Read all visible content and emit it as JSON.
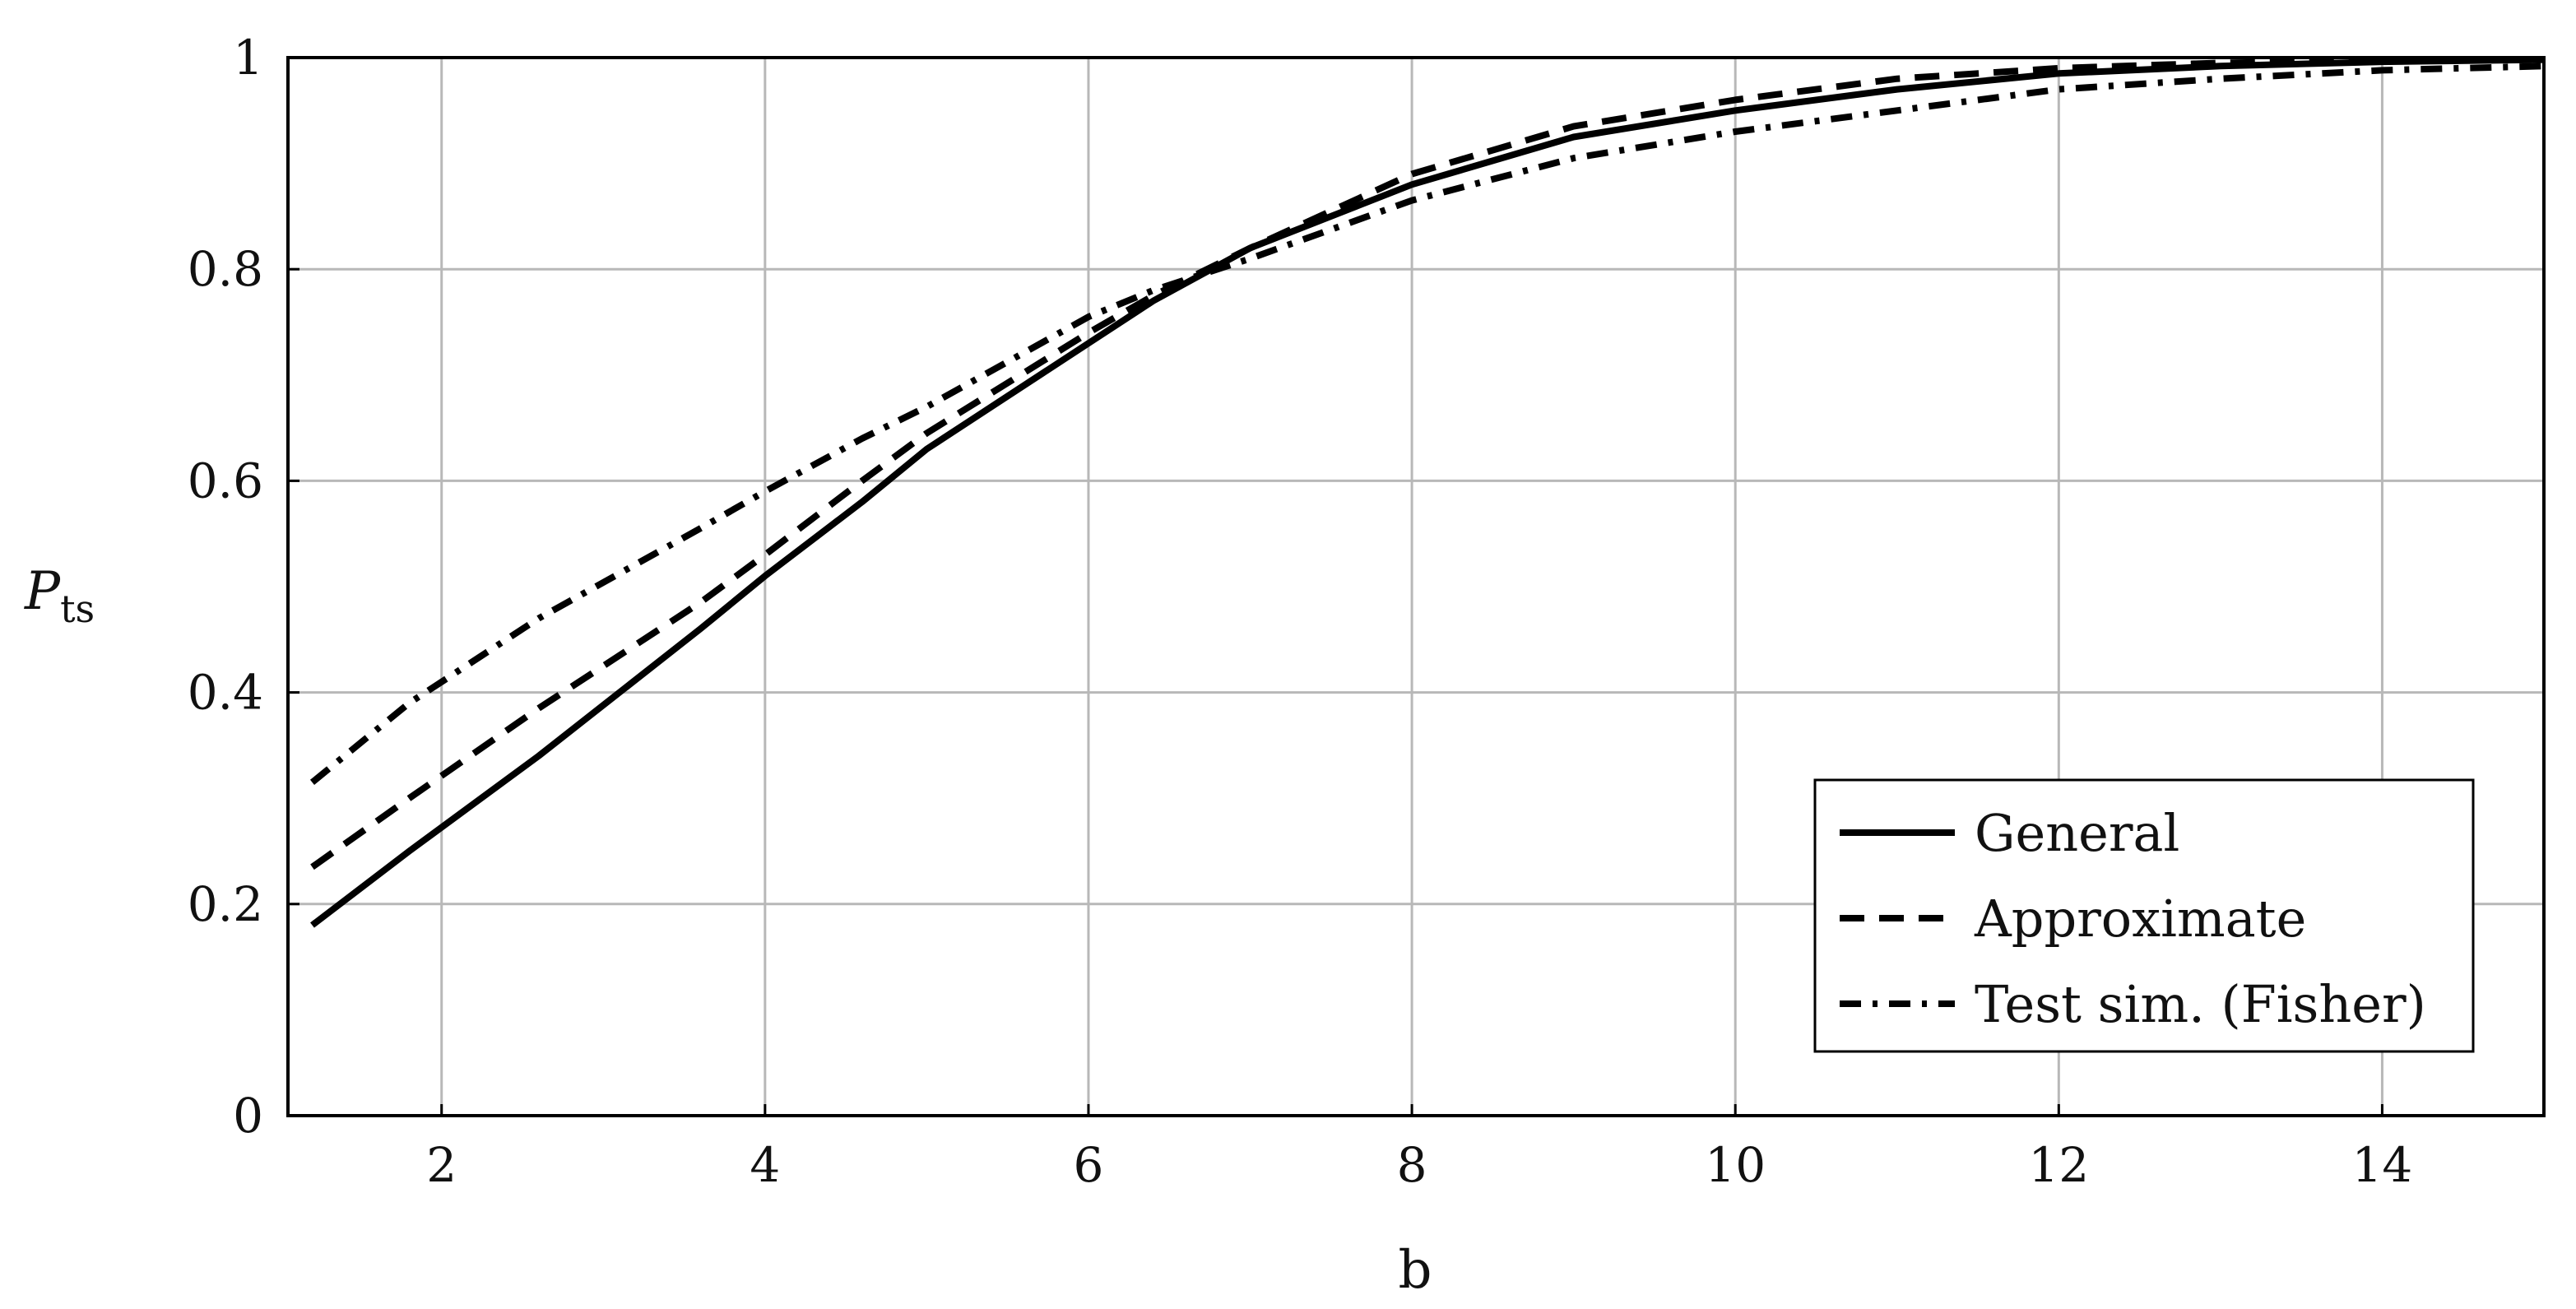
{
  "chart_data": {
    "type": "line",
    "title": "",
    "xlabel": "b",
    "ylabel": "P",
    "ylabel_subscript": "ts",
    "xlim": [
      1.05,
      15
    ],
    "ylim": [
      0,
      1
    ],
    "xticks": [
      2,
      4,
      6,
      8,
      10,
      12,
      14
    ],
    "yticks": [
      0,
      0.2,
      0.4,
      0.6,
      0.8,
      1
    ],
    "xtick_labels": [
      "2",
      "4",
      "6",
      "8",
      "10",
      "12",
      "14"
    ],
    "ytick_labels": [
      "0",
      "0.2",
      "0.4",
      "0.6",
      "0.8",
      "1"
    ],
    "grid": true,
    "legend_position": "bottom-right",
    "x": [
      1.2,
      1.8,
      2.6,
      3.6,
      4.0,
      4.6,
      5.0,
      6.0,
      6.4,
      7.0,
      8.0,
      9.0,
      10.0,
      11.0,
      12.0,
      13.0,
      14.0,
      15.0
    ],
    "series": [
      {
        "name": "General",
        "style": "solid",
        "values": [
          0.18,
          0.25,
          0.34,
          0.46,
          0.51,
          0.58,
          0.63,
          0.73,
          0.77,
          0.82,
          0.88,
          0.925,
          0.95,
          0.97,
          0.985,
          0.992,
          0.996,
          0.998
        ]
      },
      {
        "name": "Approximate",
        "style": "dashed",
        "values": [
          0.235,
          0.3,
          0.385,
          0.485,
          0.53,
          0.6,
          0.645,
          0.74,
          0.775,
          0.82,
          0.89,
          0.935,
          0.96,
          0.98,
          0.99,
          0.995,
          0.997,
          0.998
        ]
      },
      {
        "name": "Test sim. (Fisher)",
        "style": "dashdot",
        "values": [
          0.315,
          0.39,
          0.47,
          0.555,
          0.59,
          0.64,
          0.67,
          0.755,
          0.78,
          0.81,
          0.865,
          0.905,
          0.93,
          0.95,
          0.97,
          0.98,
          0.988,
          0.992
        ]
      }
    ]
  }
}
